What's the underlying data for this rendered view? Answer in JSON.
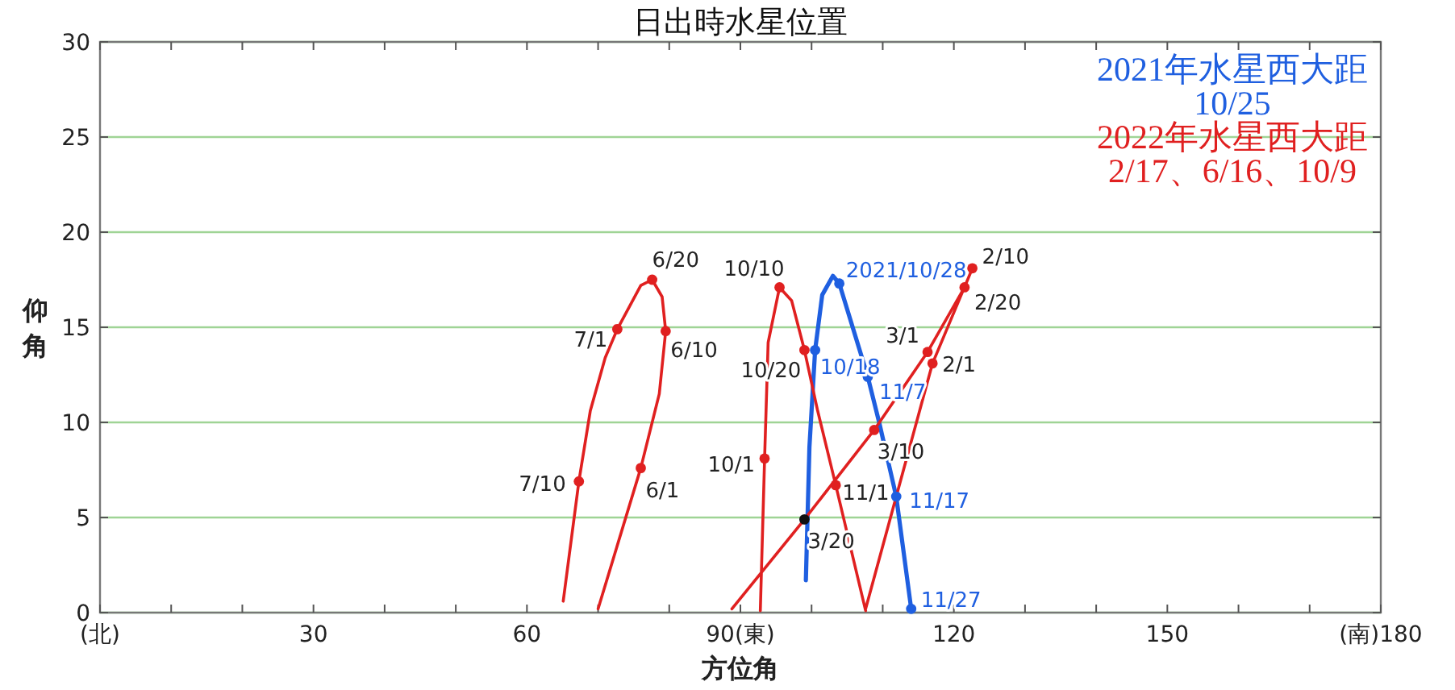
{
  "chart_data": {
    "type": "line",
    "title": "日出時水星位置",
    "xlabel": "方位角",
    "ylabel": "仰角",
    "xlim": [
      0,
      180
    ],
    "ylim": [
      0,
      30
    ],
    "xticks": [
      {
        "value": 0,
        "label": "(北)"
      },
      {
        "value": 10,
        "label": null
      },
      {
        "value": 20,
        "label": null
      },
      30,
      {
        "value": 40,
        "label": null
      },
      {
        "value": 50,
        "label": null
      },
      60,
      {
        "value": 70,
        "label": null
      },
      {
        "value": 80,
        "label": null
      },
      {
        "value": 90,
        "label": "90(東)"
      },
      {
        "value": 100,
        "label": null
      },
      {
        "value": 110,
        "label": null
      },
      120,
      {
        "value": 130,
        "label": null
      },
      {
        "value": 140,
        "label": null
      },
      150,
      {
        "value": 160,
        "label": null
      },
      {
        "value": 170,
        "label": null
      },
      {
        "value": 180,
        "label": "(南)180"
      }
    ],
    "yticks": [
      0,
      5,
      10,
      15,
      20,
      25,
      30
    ],
    "grid": "y",
    "legend": "top right",
    "series": [
      {
        "name": "2021年水星西大距\n10/25",
        "color": "#1f5fe0",
        "x": [
          99.2,
          99.7,
          100.5,
          101.5,
          103.0,
          103.9,
          107.9,
          109.5,
          111.9,
          114.0
        ],
        "values": [
          1.7,
          8.7,
          13.8,
          16.7,
          17.7,
          17.3,
          12.4,
          10.0,
          6.1,
          0.2
        ]
      },
      {
        "name": "2022年水星西大距\n2/17、6/16、10/9",
        "color": "#e02020",
        "x": [
          107.6,
          117.0,
          122.6,
          121.5,
          116.3,
          108.8,
          99.0,
          88.8,
          null,
          70.0,
          76.0,
          78.6,
          79.5,
          79.0,
          77.6,
          76.0,
          72.7,
          71.0,
          68.9,
          67.3,
          65.1,
          null,
          92.8,
          93.4,
          93.9,
          95.5,
          97.2,
          99.0,
          100.8,
          103.4,
          107.6
        ],
        "values": [
          0.2,
          13.1,
          18.1,
          17.1,
          13.7,
          9.6,
          4.9,
          0.2,
          null,
          0.2,
          7.6,
          11.5,
          14.8,
          16.6,
          17.5,
          17.2,
          14.9,
          13.4,
          10.6,
          6.9,
          0.6,
          null,
          0.1,
          8.1,
          14.2,
          17.1,
          16.4,
          13.8,
          10.7,
          6.7,
          0.1
        ]
      },
      {
        "type": "scatter",
        "marker": "circle",
        "colors": [
          "#e02020",
          "#e02020",
          "#e02020",
          "#e02020",
          "#e02020",
          "#111111",
          "#e02020",
          "#e02020",
          "#e02020",
          "#e02020",
          "#e02020",
          "#e02020",
          "#e02020",
          "#e02020",
          "#e02020"
        ],
        "x": [
          117.0,
          122.6,
          121.5,
          116.3,
          108.8,
          99.0,
          76.0,
          79.5,
          77.6,
          72.7,
          67.3,
          93.4,
          95.5,
          99.0,
          103.4
        ],
        "values": [
          13.1,
          18.1,
          17.1,
          13.7,
          9.6,
          4.9,
          7.6,
          14.8,
          17.5,
          14.9,
          6.9,
          8.1,
          17.1,
          13.8,
          6.7
        ]
      },
      {
        "type": "scatter",
        "marker": "circle",
        "color": "#1f5fe0",
        "x": [
          100.5,
          103.9,
          107.9,
          111.9,
          114.0
        ],
        "values": [
          13.8,
          17.3,
          12.4,
          6.1,
          0.2
        ]
      }
    ],
    "annotations": [
      {
        "text": "2/1",
        "x": 117.0,
        "y": 13.1
      },
      {
        "text": "2/10",
        "x": 122.6,
        "y": 18.1
      },
      {
        "text": "2/20",
        "x": 121.5,
        "y": 17.1
      },
      {
        "text": "3/1",
        "x": 116.3,
        "y": 13.7
      },
      {
        "text": "3/10",
        "x": 108.8,
        "y": 9.6
      },
      {
        "text": "3/20",
        "x": 99.0,
        "y": 4.9
      },
      {
        "text": "6/1",
        "x": 76.0,
        "y": 7.6
      },
      {
        "text": "6/10",
        "x": 79.5,
        "y": 14.8
      },
      {
        "text": "6/20",
        "x": 77.6,
        "y": 17.5
      },
      {
        "text": "7/1",
        "x": 72.7,
        "y": 14.9
      },
      {
        "text": "7/10",
        "x": 67.3,
        "y": 6.9
      },
      {
        "text": "10/1",
        "x": 93.4,
        "y": 8.1
      },
      {
        "text": "10/10",
        "x": 95.5,
        "y": 17.1
      },
      {
        "text": "10/20",
        "x": 99.0,
        "y": 13.8
      },
      {
        "text": "11/1",
        "x": 103.4,
        "y": 6.7
      },
      {
        "text": "10/18",
        "x": 100.5,
        "y": 13.8
      },
      {
        "text": "2021/10/28",
        "x": 103.9,
        "y": 17.3
      },
      {
        "text": "11/7",
        "x": 107.9,
        "y": 12.4
      },
      {
        "text": "11/17",
        "x": 111.9,
        "y": 6.1
      },
      {
        "text": "11/27",
        "x": 114.0,
        "y": 0.2
      }
    ]
  }
}
